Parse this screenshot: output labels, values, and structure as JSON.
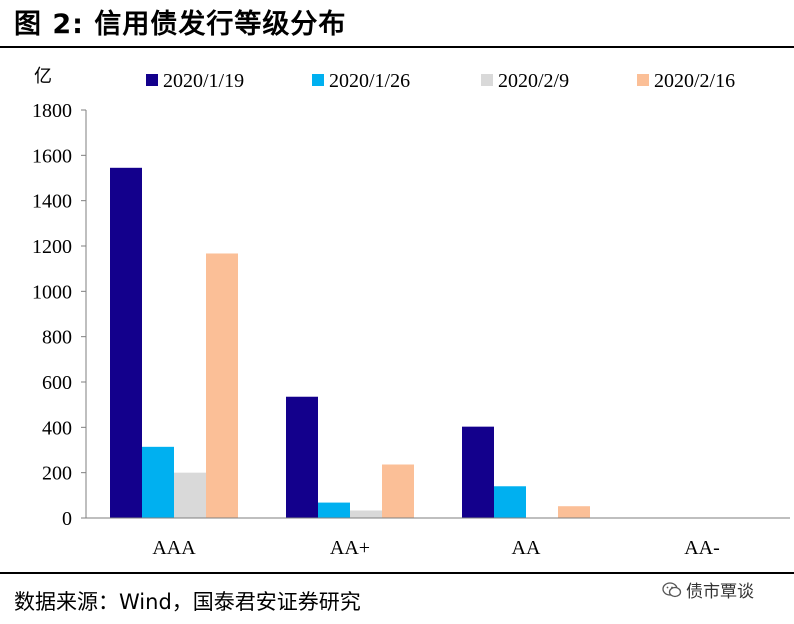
{
  "header": {
    "title": "图 2:  信用债发行等级分布"
  },
  "footer": {
    "source": "数据来源：Wind，国泰君安证券研究",
    "watermark": "债市覃谈"
  },
  "colors": {
    "s1": "#13008c",
    "s2": "#00b0f0",
    "s3": "#d9d9d9",
    "s4": "#fbbf97"
  },
  "chart_data": {
    "type": "bar",
    "ylabel": "亿",
    "ylim": [
      0,
      1800
    ],
    "yticks": [
      0,
      200,
      400,
      600,
      800,
      1000,
      1200,
      1400,
      1600,
      1800
    ],
    "categories": [
      "AAA",
      "AA+",
      "AA",
      "AA-"
    ],
    "legend_position": "top",
    "grid": false,
    "series": [
      {
        "name": "2020/1/19",
        "color": "#13008c",
        "values": [
          1545,
          535,
          403,
          0
        ]
      },
      {
        "name": "2020/1/26",
        "color": "#00b0f0",
        "values": [
          314,
          68,
          140,
          0
        ]
      },
      {
        "name": "2020/2/9",
        "color": "#d9d9d9",
        "values": [
          200,
          33,
          2,
          0
        ]
      },
      {
        "name": "2020/2/16",
        "color": "#fbbf97",
        "values": [
          1167,
          236,
          52,
          0
        ]
      }
    ]
  }
}
